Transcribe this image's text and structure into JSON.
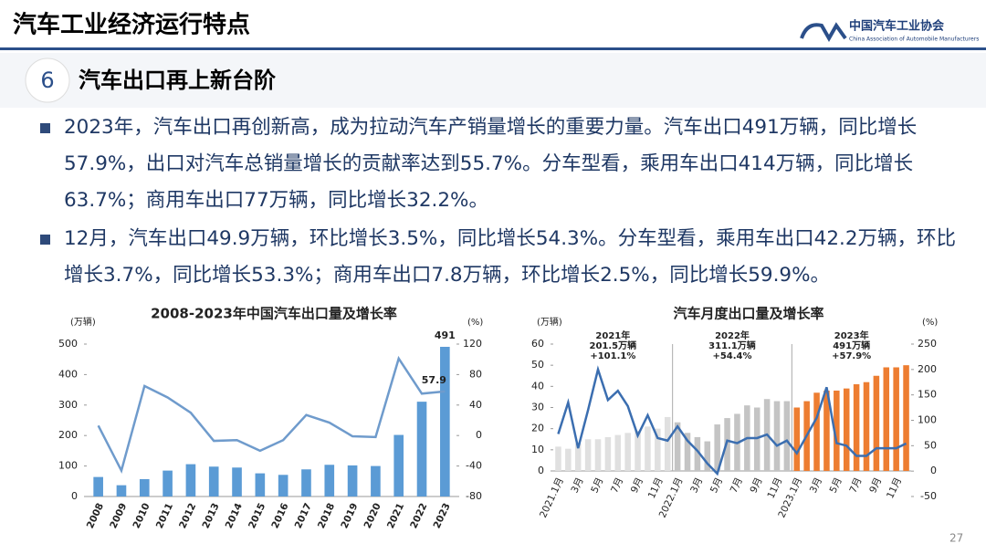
{
  "header": {
    "title": "汽车工业经济运行特点",
    "logo_cn": "中国汽车工业协会",
    "logo_en": "China Association of Automobile Manufacturers"
  },
  "section": {
    "number": "6",
    "title": "汽车出口再上新台阶"
  },
  "bullets": [
    "2023年，汽车出口再创新高，成为拉动汽车产销量增长的重要力量。汽车出口491万辆，同比增长57.9%，出口对汽车总销量增长的贡献率达到55.7%。分车型看，乘用车出口414万辆，同比增长63.7%；商用车出口77万辆，同比增长32.2%。",
    "12月，汽车出口49.9万辆，环比增长3.5%，同比增长54.3%。分车型看，乘用车出口42.2万辆，环比增长3.7%，同比增长53.3%；商用车出口7.8万辆，环比增长2.5%，同比增长59.9%。"
  ],
  "page_number": "27",
  "chart_data": [
    {
      "type": "combo",
      "title": "2008-2023年中国汽车出口量及增长率",
      "unit_y": "(万辆)",
      "unit_y2": "(%)",
      "data_labels": "last",
      "categories": [
        "2008",
        "2009",
        "2010",
        "2011",
        "2012",
        "2013",
        "2014",
        "2015",
        "2016",
        "2017",
        "2018",
        "2019",
        "2020",
        "2021",
        "2022",
        "2023"
      ],
      "series": [
        {
          "type": "bar",
          "color": "#5b9bd5",
          "axis": "y",
          "values": [
            64,
            37,
            57,
            85,
            106,
            98,
            95,
            76,
            71,
            89,
            104,
            102,
            100,
            202,
            311,
            491
          ]
        },
        {
          "type": "line",
          "color": "#6f9bcc",
          "axis": "y2",
          "values": [
            13,
            -46,
            65,
            50,
            30,
            -7,
            -6,
            -20,
            -6,
            27,
            17,
            -1,
            -2,
            101,
            55,
            57.9
          ]
        }
      ],
      "ylim": [
        0,
        500
      ],
      "yticks": [
        0,
        100,
        200,
        300,
        400,
        500
      ],
      "y2lim": [
        -80,
        120
      ],
      "y2ticks": [
        -80,
        -40,
        0,
        40,
        80,
        120
      ]
    },
    {
      "type": "combo",
      "title": "汽车月度出口量及增长率",
      "unit_y": "(万辆)",
      "unit_y2": "(%)",
      "categories": [
        "2021.1月",
        null,
        "3月",
        null,
        "5月",
        null,
        "7月",
        null,
        "9月",
        null,
        "11月",
        null,
        "2022.1月",
        null,
        "3月",
        null,
        "5月",
        null,
        "7月",
        null,
        "9月",
        null,
        "11月",
        null,
        "2023.1月",
        null,
        "3月",
        null,
        "5月",
        null,
        "7月",
        null,
        "9月",
        null,
        "11月",
        null
      ],
      "series": [
        {
          "type": "bar",
          "color": "#e0e0e0",
          "axis": "y",
          "values": [
            11.5,
            10.5,
            13,
            15,
            15,
            16,
            17,
            18,
            19,
            21,
            20,
            25.5,
            null,
            null,
            null,
            null,
            null,
            null,
            null,
            null,
            null,
            null,
            null,
            null,
            null,
            null,
            null,
            null,
            null,
            null,
            null,
            null,
            null,
            null,
            null,
            null
          ]
        },
        {
          "type": "bar",
          "color": "#c4c4c4",
          "axis": "y",
          "values": [
            null,
            null,
            null,
            null,
            null,
            null,
            null,
            null,
            null,
            null,
            null,
            null,
            23,
            18,
            16,
            14,
            22,
            25,
            27,
            31,
            30,
            34,
            33,
            33,
            null,
            null,
            null,
            null,
            null,
            null,
            null,
            null,
            null,
            null,
            null,
            null
          ]
        },
        {
          "type": "bar",
          "color": "#ed7d31",
          "axis": "y",
          "values": [
            null,
            null,
            null,
            null,
            null,
            null,
            null,
            null,
            null,
            null,
            null,
            null,
            null,
            null,
            null,
            null,
            null,
            null,
            null,
            null,
            null,
            null,
            null,
            null,
            30,
            33,
            37,
            38,
            38,
            39,
            41,
            42,
            45,
            49,
            49,
            50
          ]
        },
        {
          "type": "line",
          "color": "#3b6eb0",
          "axis": "y2",
          "values": [
            73,
            135,
            45,
            120,
            200,
            140,
            158,
            128,
            70,
            110,
            65,
            60,
            88,
            60,
            40,
            15,
            -5,
            60,
            55,
            65,
            65,
            72,
            50,
            60,
            35,
            70,
            105,
            165,
            55,
            50,
            30,
            30,
            45,
            45,
            45,
            54.3
          ]
        }
      ],
      "annotations": [
        [
          "2021年",
          "201.5万辆",
          "+101.1%"
        ],
        [
          "2022年",
          "311.1万辆",
          "+54.4%"
        ],
        [
          "2023年",
          "491万辆",
          "+57.9%"
        ]
      ],
      "ylim": [
        0,
        60
      ],
      "yticks": [
        0,
        10,
        20,
        30,
        40,
        50,
        60
      ],
      "y2lim": [
        -50,
        250
      ],
      "y2ticks": [
        -50,
        0,
        50,
        100,
        150,
        200,
        250
      ]
    }
  ]
}
